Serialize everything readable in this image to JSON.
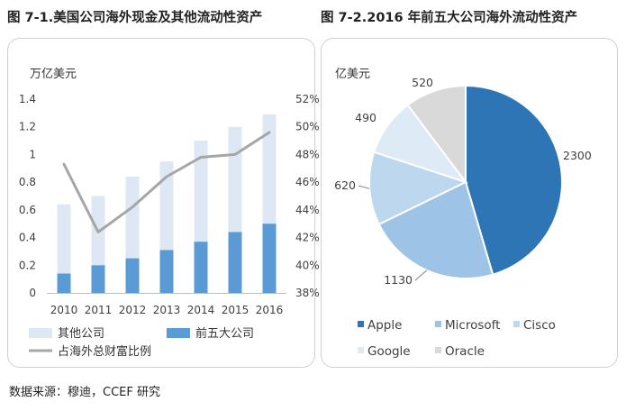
{
  "titles": {
    "left": "图 7-1.美国公司海外现金及其他流动性资产",
    "right": "图 7-2.2016 年前五大公司海外流动性资产"
  },
  "source_note": "数据来源：穆迪，CCEF 研究",
  "chart_data": [
    {
      "type": "bar",
      "stacked": true,
      "title": "图 7-1.美国公司海外现金及其他流动性资产",
      "ylabel": "万亿美元",
      "categories": [
        "2010",
        "2011",
        "2012",
        "2013",
        "2014",
        "2015",
        "2016"
      ],
      "ylim": [
        0,
        1.4
      ],
      "yticks": [
        "0",
        "0.2",
        "0.4",
        "0.6",
        "0.8",
        "1",
        "1.2",
        "1.4"
      ],
      "y2lim": [
        38,
        52
      ],
      "y2ticks": [
        "38%",
        "40%",
        "42%",
        "44%",
        "46%",
        "48%",
        "50%",
        "52%"
      ],
      "series": [
        {
          "name": "前五大公司",
          "kind": "bar",
          "color": "#5b9bd5",
          "values": [
            0.14,
            0.2,
            0.25,
            0.31,
            0.37,
            0.44,
            0.5
          ]
        },
        {
          "name": "其他公司",
          "kind": "bar",
          "color": "#dde8f4",
          "values": [
            0.5,
            0.5,
            0.59,
            0.64,
            0.73,
            0.76,
            0.79
          ]
        },
        {
          "name": "占海外总财富比例",
          "kind": "line",
          "axis": "right",
          "color": "#a6a6a6",
          "values": [
            47.3,
            42.4,
            44.2,
            46.4,
            47.8,
            48.0,
            49.6
          ]
        }
      ],
      "legend": [
        {
          "label": "其他公司",
          "color": "#dde8f4",
          "kind": "bar"
        },
        {
          "label": "前五大公司",
          "color": "#5b9bd5",
          "kind": "bar"
        },
        {
          "label": "占海外总财富比例",
          "color": "#a6a6a6",
          "kind": "line"
        }
      ],
      "legend_position": "bottom",
      "grid": false
    },
    {
      "type": "pie",
      "title": "图 7-2.2016 年前五大公司海外流动性资产",
      "unit_label": "亿美元",
      "slices": [
        {
          "name": "Apple",
          "value": 2300,
          "label": "2300",
          "color": "#2e75b6"
        },
        {
          "name": "Microsoft",
          "value": 1130,
          "label": "1130",
          "color": "#9dc3e6"
        },
        {
          "name": "Cisco",
          "value": 620,
          "label": "620",
          "color": "#bdd7ee"
        },
        {
          "name": "Google",
          "value": 490,
          "label": "490",
          "color": "#deebf7"
        },
        {
          "name": "Oracle",
          "value": 520,
          "label": "520",
          "color": "#d9d9d9"
        }
      ],
      "legend_position": "bottom"
    }
  ]
}
